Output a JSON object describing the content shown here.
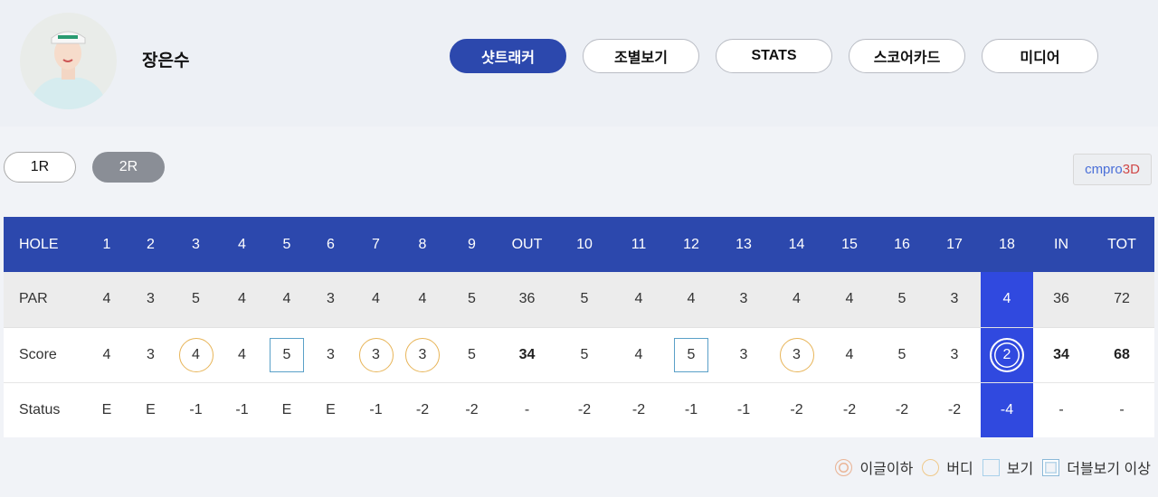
{
  "player": {
    "name": "장은수"
  },
  "tabs": [
    "샷트래커",
    "조별보기",
    "STATS",
    "스코어카드",
    "미디어"
  ],
  "active_tab": 0,
  "rounds": [
    "1R",
    "2R"
  ],
  "active_round": 1,
  "cmpro": {
    "a": "cmpro",
    "b": "3D"
  },
  "table": {
    "header": [
      "HOLE",
      "1",
      "2",
      "3",
      "4",
      "5",
      "6",
      "7",
      "8",
      "9",
      "OUT",
      "10",
      "11",
      "12",
      "13",
      "14",
      "15",
      "16",
      "17",
      "18",
      "IN",
      "TOT"
    ],
    "par": [
      "PAR",
      "4",
      "3",
      "5",
      "4",
      "4",
      "3",
      "4",
      "4",
      "5",
      "36",
      "5",
      "4",
      "4",
      "3",
      "4",
      "4",
      "5",
      "3",
      "4",
      "36",
      "72"
    ],
    "score": [
      "Score",
      "4",
      "3",
      "4",
      "4",
      "5",
      "3",
      "3",
      "3",
      "5",
      "34",
      "5",
      "4",
      "5",
      "3",
      "3",
      "4",
      "5",
      "3",
      "2",
      "34",
      "68"
    ],
    "score_marks": [
      "",
      "",
      "",
      "birdie",
      "",
      "bogey",
      "",
      "birdie",
      "birdie",
      "",
      "",
      "",
      "",
      "bogey",
      "",
      "birdie",
      "",
      "",
      "",
      "eagle",
      "",
      ""
    ],
    "status": [
      "Status",
      "E",
      "E",
      "-1",
      "-1",
      "E",
      "E",
      "-1",
      "-2",
      "-2",
      "-",
      "-2",
      "-2",
      "-1",
      "-1",
      "-2",
      "-2",
      "-2",
      "-2",
      "-4",
      "-",
      "-"
    ],
    "highlight_hole": "18"
  },
  "legend": [
    "이글이하",
    "버디",
    "보기",
    "더블보기 이상"
  ],
  "colors": {
    "brand": "#2c48ad",
    "highlight": "#3049df",
    "birdie": "#e8b559",
    "bogey": "#5aa0c8"
  }
}
